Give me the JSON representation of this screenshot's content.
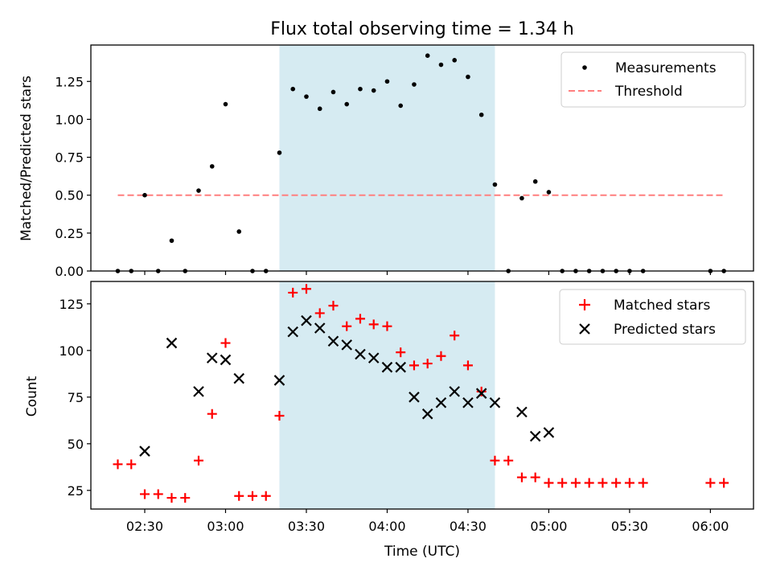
{
  "title": "Flux total observing time = 1.34 h",
  "shaded_span": [
    "03:20",
    "04:40"
  ],
  "colors": {
    "shade": "#add8e6",
    "measurements": "#000000",
    "threshold": "#ff7f7f",
    "matched": "#ff0000",
    "predicted": "#000000"
  },
  "chart_data": [
    {
      "type": "scatter",
      "ylabel": "Matched/Predicted stars",
      "ylim": [
        0,
        1.49
      ],
      "yticks": [
        "0.00",
        "0.25",
        "0.50",
        "0.75",
        "1.00",
        "1.25"
      ],
      "ytick_values": [
        0,
        0.25,
        0.5,
        0.75,
        1.0,
        1.25
      ],
      "legend": {
        "placement": "top-right",
        "entries": [
          "Measurements",
          "Threshold"
        ]
      },
      "threshold": {
        "name": "Threshold",
        "value": 0.5,
        "x_range": [
          "02:20",
          "06:05"
        ]
      },
      "series": [
        {
          "name": "Measurements",
          "x": [
            "02:20",
            "02:25",
            "02:30",
            "02:35",
            "02:40",
            "02:45",
            "02:50",
            "02:55",
            "03:00",
            "03:05",
            "03:10",
            "03:15",
            "03:20",
            "03:25",
            "03:30",
            "03:35",
            "03:40",
            "03:45",
            "03:50",
            "03:55",
            "04:00",
            "04:05",
            "04:10",
            "04:15",
            "04:20",
            "04:25",
            "04:30",
            "04:35",
            "04:40",
            "04:45",
            "04:50",
            "04:55",
            "05:00",
            "05:05",
            "05:10",
            "05:15",
            "05:20",
            "05:25",
            "05:30",
            "05:35",
            "06:00",
            "06:05"
          ],
          "y": [
            0,
            0,
            0.5,
            0,
            0.2,
            0,
            0.53,
            0.69,
            1.1,
            0.26,
            0,
            0,
            0.78,
            1.2,
            1.15,
            1.07,
            1.18,
            1.1,
            1.2,
            1.19,
            1.25,
            1.09,
            1.23,
            1.42,
            1.36,
            1.39,
            1.28,
            1.03,
            0.57,
            0,
            0.48,
            0.59,
            0.52,
            0,
            0,
            0,
            0,
            0,
            0,
            0,
            0,
            0
          ]
        }
      ]
    },
    {
      "type": "scatter",
      "xlabel": "Time (UTC)",
      "ylabel": "Count",
      "ylim": [
        15,
        137
      ],
      "yticks": [
        "25",
        "50",
        "75",
        "100",
        "125"
      ],
      "ytick_values": [
        25,
        50,
        75,
        100,
        125
      ],
      "xticks": [
        "02:30",
        "03:00",
        "03:30",
        "04:00",
        "04:30",
        "05:00",
        "05:30",
        "06:00"
      ],
      "xlim": [
        "02:10",
        "06:16"
      ],
      "legend": {
        "placement": "top-right",
        "entries": [
          "Matched stars",
          "Predicted stars"
        ]
      },
      "series": [
        {
          "name": "Matched stars",
          "x": [
            "02:20",
            "02:25",
            "02:30",
            "02:35",
            "02:40",
            "02:45",
            "02:50",
            "02:55",
            "03:00",
            "03:05",
            "03:10",
            "03:15",
            "03:20",
            "03:25",
            "03:30",
            "03:35",
            "03:40",
            "03:45",
            "03:50",
            "03:55",
            "04:00",
            "04:05",
            "04:10",
            "04:15",
            "04:20",
            "04:25",
            "04:30",
            "04:35",
            "04:40",
            "04:45",
            "04:50",
            "04:55",
            "05:00",
            "05:05",
            "05:10",
            "05:15",
            "05:20",
            "05:25",
            "05:30",
            "05:35",
            "06:00",
            "06:05"
          ],
          "y": [
            39,
            39,
            23,
            23,
            21,
            21,
            41,
            66,
            104,
            22,
            22,
            22,
            65,
            131,
            133,
            120,
            124,
            113,
            117,
            114,
            113,
            99,
            92,
            93,
            97,
            108,
            92,
            78,
            41,
            41,
            32,
            32,
            29,
            29,
            29,
            29,
            29,
            29,
            29,
            29,
            29,
            29
          ]
        },
        {
          "name": "Predicted stars",
          "x": [
            "02:30",
            "02:40",
            "02:50",
            "02:55",
            "03:00",
            "03:05",
            "03:20",
            "03:25",
            "03:30",
            "03:35",
            "03:40",
            "03:45",
            "03:50",
            "03:55",
            "04:00",
            "04:05",
            "04:10",
            "04:15",
            "04:20",
            "04:25",
            "04:30",
            "04:35",
            "04:40",
            "04:50",
            "04:55",
            "05:00"
          ],
          "y": [
            46,
            104,
            78,
            96,
            95,
            85,
            84,
            110,
            116,
            112,
            105,
            103,
            98,
            96,
            91,
            91,
            75,
            66,
            72,
            78,
            72,
            77,
            72,
            67,
            54,
            56
          ]
        }
      ]
    }
  ]
}
